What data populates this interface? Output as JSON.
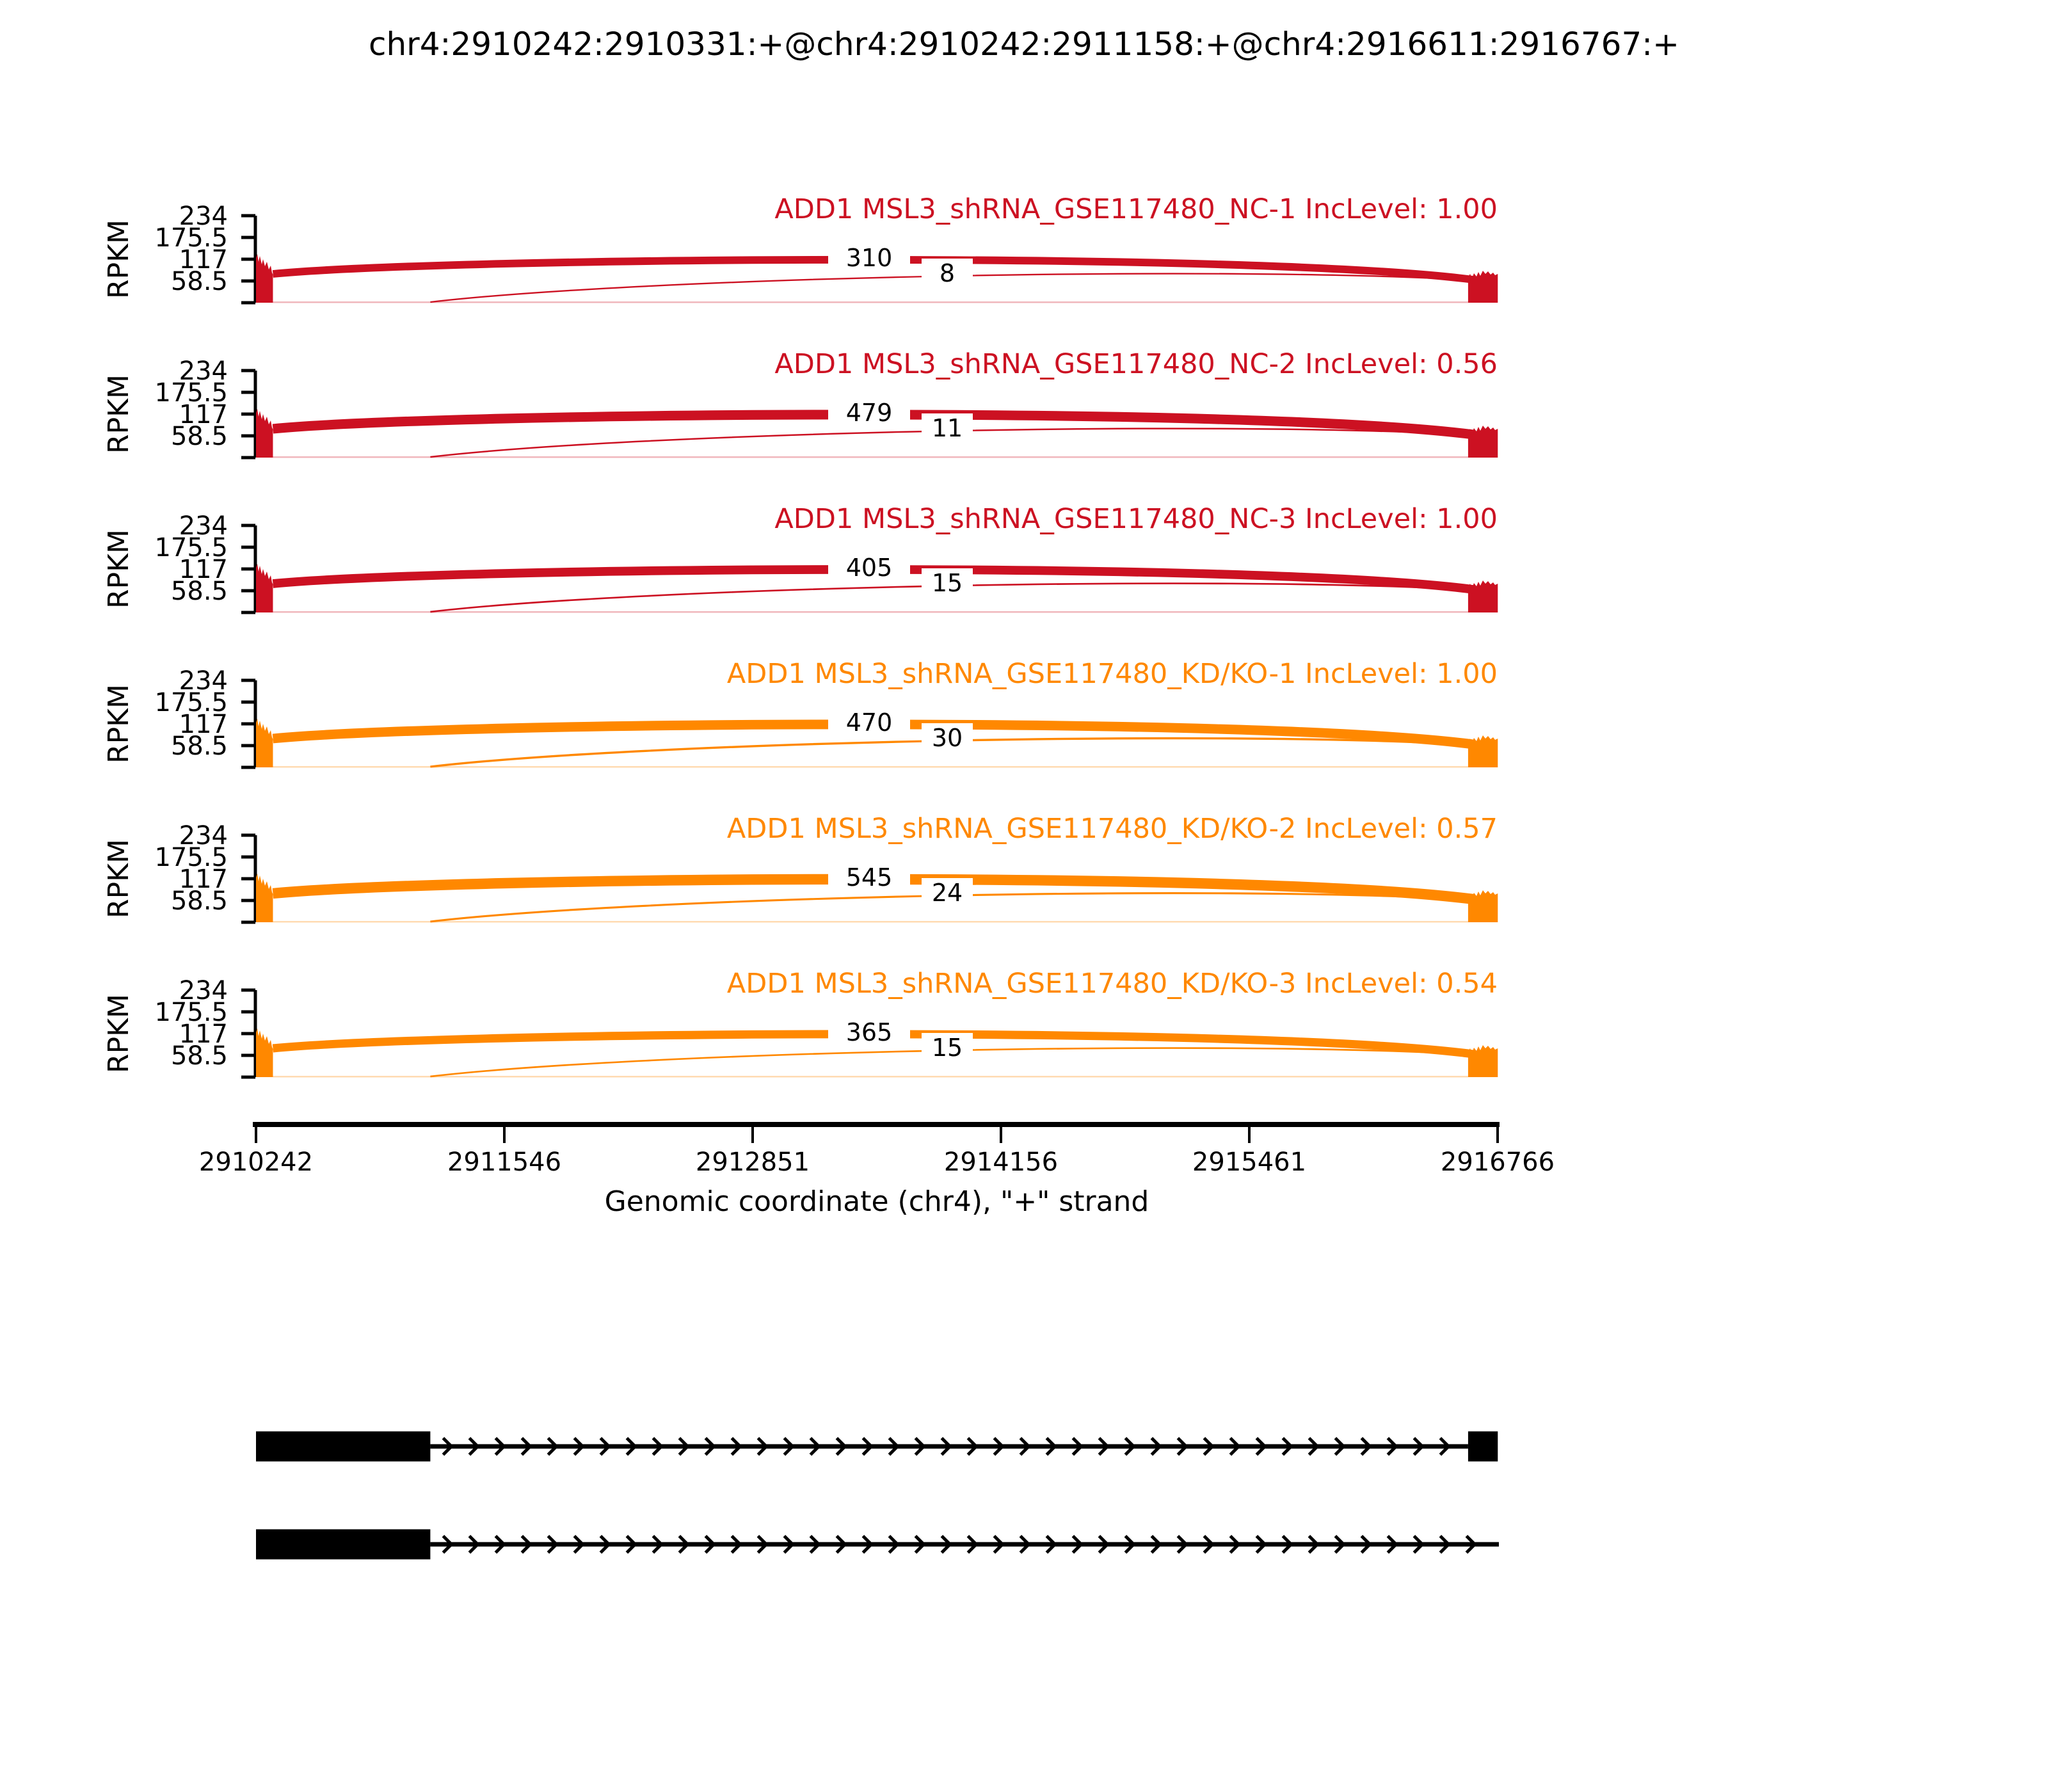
{
  "header": {
    "title": "chr4:2910242:2910331:+@chr4:2910242:2911158:+@chr4:2916611:2916767:+"
  },
  "colors": {
    "group_nc": "#CC1122",
    "group_kd": "#FF8800",
    "structure": "#000000",
    "background": "#FFFFFF",
    "text": "#000000"
  },
  "chart_data": {
    "type": "sashimi",
    "gene": "ADD1",
    "title": "chr4:2910242:2910331:+@chr4:2910242:2911158:+@chr4:2916611:2916767:+",
    "xlabel": "Genomic coordinate (chr4), \"+\" strand",
    "ylabel": "RPKM",
    "x_range": [
      2910242,
      2916766
    ],
    "x_ticks": [
      2910242,
      2911546,
      2912851,
      2914156,
      2915461,
      2916766
    ],
    "y_ticks": [
      234,
      175.5,
      117,
      58.5
    ],
    "region": {
      "chrom": "chr4",
      "strand": "+",
      "short_exon": [
        2910242,
        2910331
      ],
      "long_exon": [
        2910242,
        2911158
      ],
      "flanking_exon": [
        2916611,
        2916767
      ]
    },
    "tracks": [
      {
        "label": "ADD1 MSL3_shRNA_GSE117480_NC-1 IncLevel: 1.00",
        "sample": "NC-1",
        "inc_level": "1.00",
        "color": "#CC1122",
        "junction_main": 310,
        "junction_minor": 8
      },
      {
        "label": "ADD1 MSL3_shRNA_GSE117480_NC-2 IncLevel: 0.56",
        "sample": "NC-2",
        "inc_level": "0.56",
        "color": "#CC1122",
        "junction_main": 479,
        "junction_minor": 11
      },
      {
        "label": "ADD1 MSL3_shRNA_GSE117480_NC-3 IncLevel: 1.00",
        "sample": "NC-3",
        "inc_level": "1.00",
        "color": "#CC1122",
        "junction_main": 405,
        "junction_minor": 15
      },
      {
        "label": "ADD1 MSL3_shRNA_GSE117480_KD/KO-1 IncLevel: 1.00",
        "sample": "KD/KO-1",
        "inc_level": "1.00",
        "color": "#FF8800",
        "junction_main": 470,
        "junction_minor": 30
      },
      {
        "label": "ADD1 MSL3_shRNA_GSE117480_KD/KO-2 IncLevel: 0.57",
        "sample": "KD/KO-2",
        "inc_level": "0.57",
        "color": "#FF8800",
        "junction_main": 545,
        "junction_minor": 24
      },
      {
        "label": "ADD1 MSL3_shRNA_GSE117480_KD/KO-3 IncLevel: 0.54",
        "sample": "KD/KO-3",
        "inc_level": "0.54",
        "color": "#FF8800",
        "junction_main": 365,
        "junction_minor": 15
      }
    ],
    "isoforms": [
      {
        "exons": [
          [
            2910242,
            2911158
          ],
          [
            2916611,
            2916767
          ]
        ],
        "intron": [
          2911158,
          2916611
        ],
        "arrows": true
      },
      {
        "exons": [
          [
            2910242,
            2911158
          ]
        ],
        "intron": [
          2911158,
          2916766
        ],
        "arrows": true
      }
    ]
  }
}
